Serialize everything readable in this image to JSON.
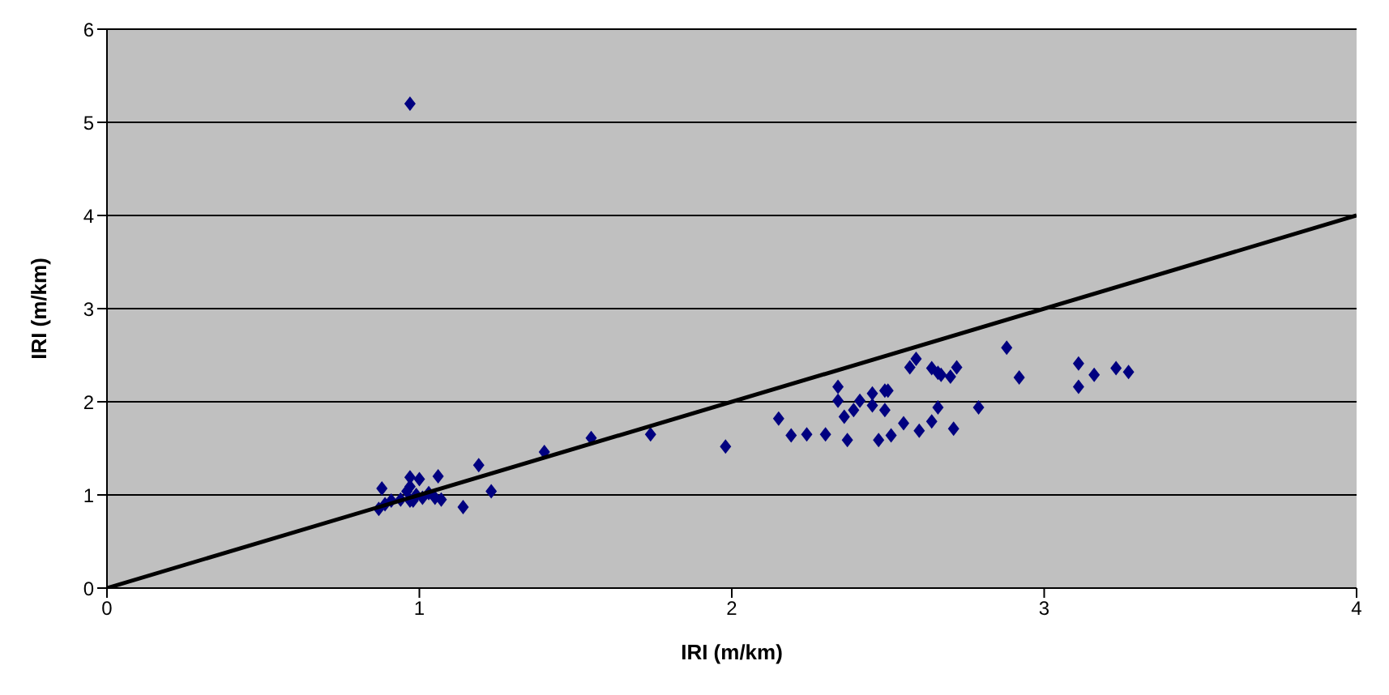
{
  "chart_data": {
    "type": "scatter",
    "xlabel": "IRI (m/km)",
    "ylabel": "IRI (m/km)",
    "xlim": [
      0,
      4
    ],
    "xticks": [
      0,
      1,
      2,
      3,
      4
    ],
    "ylim": [
      0,
      6
    ],
    "yticks": [
      0,
      1,
      2,
      3,
      4,
      5,
      6
    ],
    "grid": "y",
    "marker": "diamond",
    "series": [
      {
        "color": "#000080",
        "x": [
          0.97,
          0.87,
          0.88,
          0.89,
          0.91,
          0.94,
          0.97,
          0.97,
          0.97,
          0.98,
          1.0,
          1.01,
          1.03,
          1.05,
          1.06,
          1.07,
          1.14,
          1.19,
          1.23,
          0.99,
          0.96,
          1.4,
          1.55,
          1.74,
          1.98,
          2.15,
          2.19,
          2.24,
          2.3,
          2.34,
          2.34,
          2.37,
          2.36,
          2.39,
          2.41,
          2.45,
          2.45,
          2.49,
          2.5,
          2.49,
          2.47,
          2.51,
          2.55,
          2.57,
          2.59,
          2.6,
          2.64,
          2.64,
          2.66,
          2.66,
          2.67,
          2.7,
          2.72,
          2.71,
          2.79,
          2.88,
          2.92,
          3.11,
          3.11,
          3.16,
          3.23,
          3.27
        ],
        "values": [
          5.2,
          0.85,
          1.07,
          0.9,
          0.94,
          0.95,
          1.19,
          1.09,
          0.94,
          0.94,
          1.17,
          0.97,
          1.02,
          0.97,
          1.2,
          0.95,
          0.87,
          1.32,
          1.04,
          1.0,
          1.04,
          1.46,
          1.61,
          1.65,
          1.52,
          1.82,
          1.64,
          1.65,
          1.65,
          2.16,
          2.01,
          1.59,
          1.84,
          1.91,
          2.01,
          2.09,
          1.96,
          2.12,
          2.12,
          1.91,
          1.59,
          1.64,
          1.77,
          2.37,
          2.46,
          1.69,
          1.79,
          2.36,
          2.31,
          1.94,
          2.29,
          2.27,
          2.37,
          1.71,
          1.94,
          2.58,
          2.26,
          2.16,
          2.41,
          2.29,
          2.36,
          2.32
        ]
      },
      {
        "type": "line",
        "color": "#000000",
        "marker": "none",
        "line_style": "solid",
        "x": [
          0,
          4
        ],
        "values": [
          0,
          4
        ]
      }
    ]
  }
}
